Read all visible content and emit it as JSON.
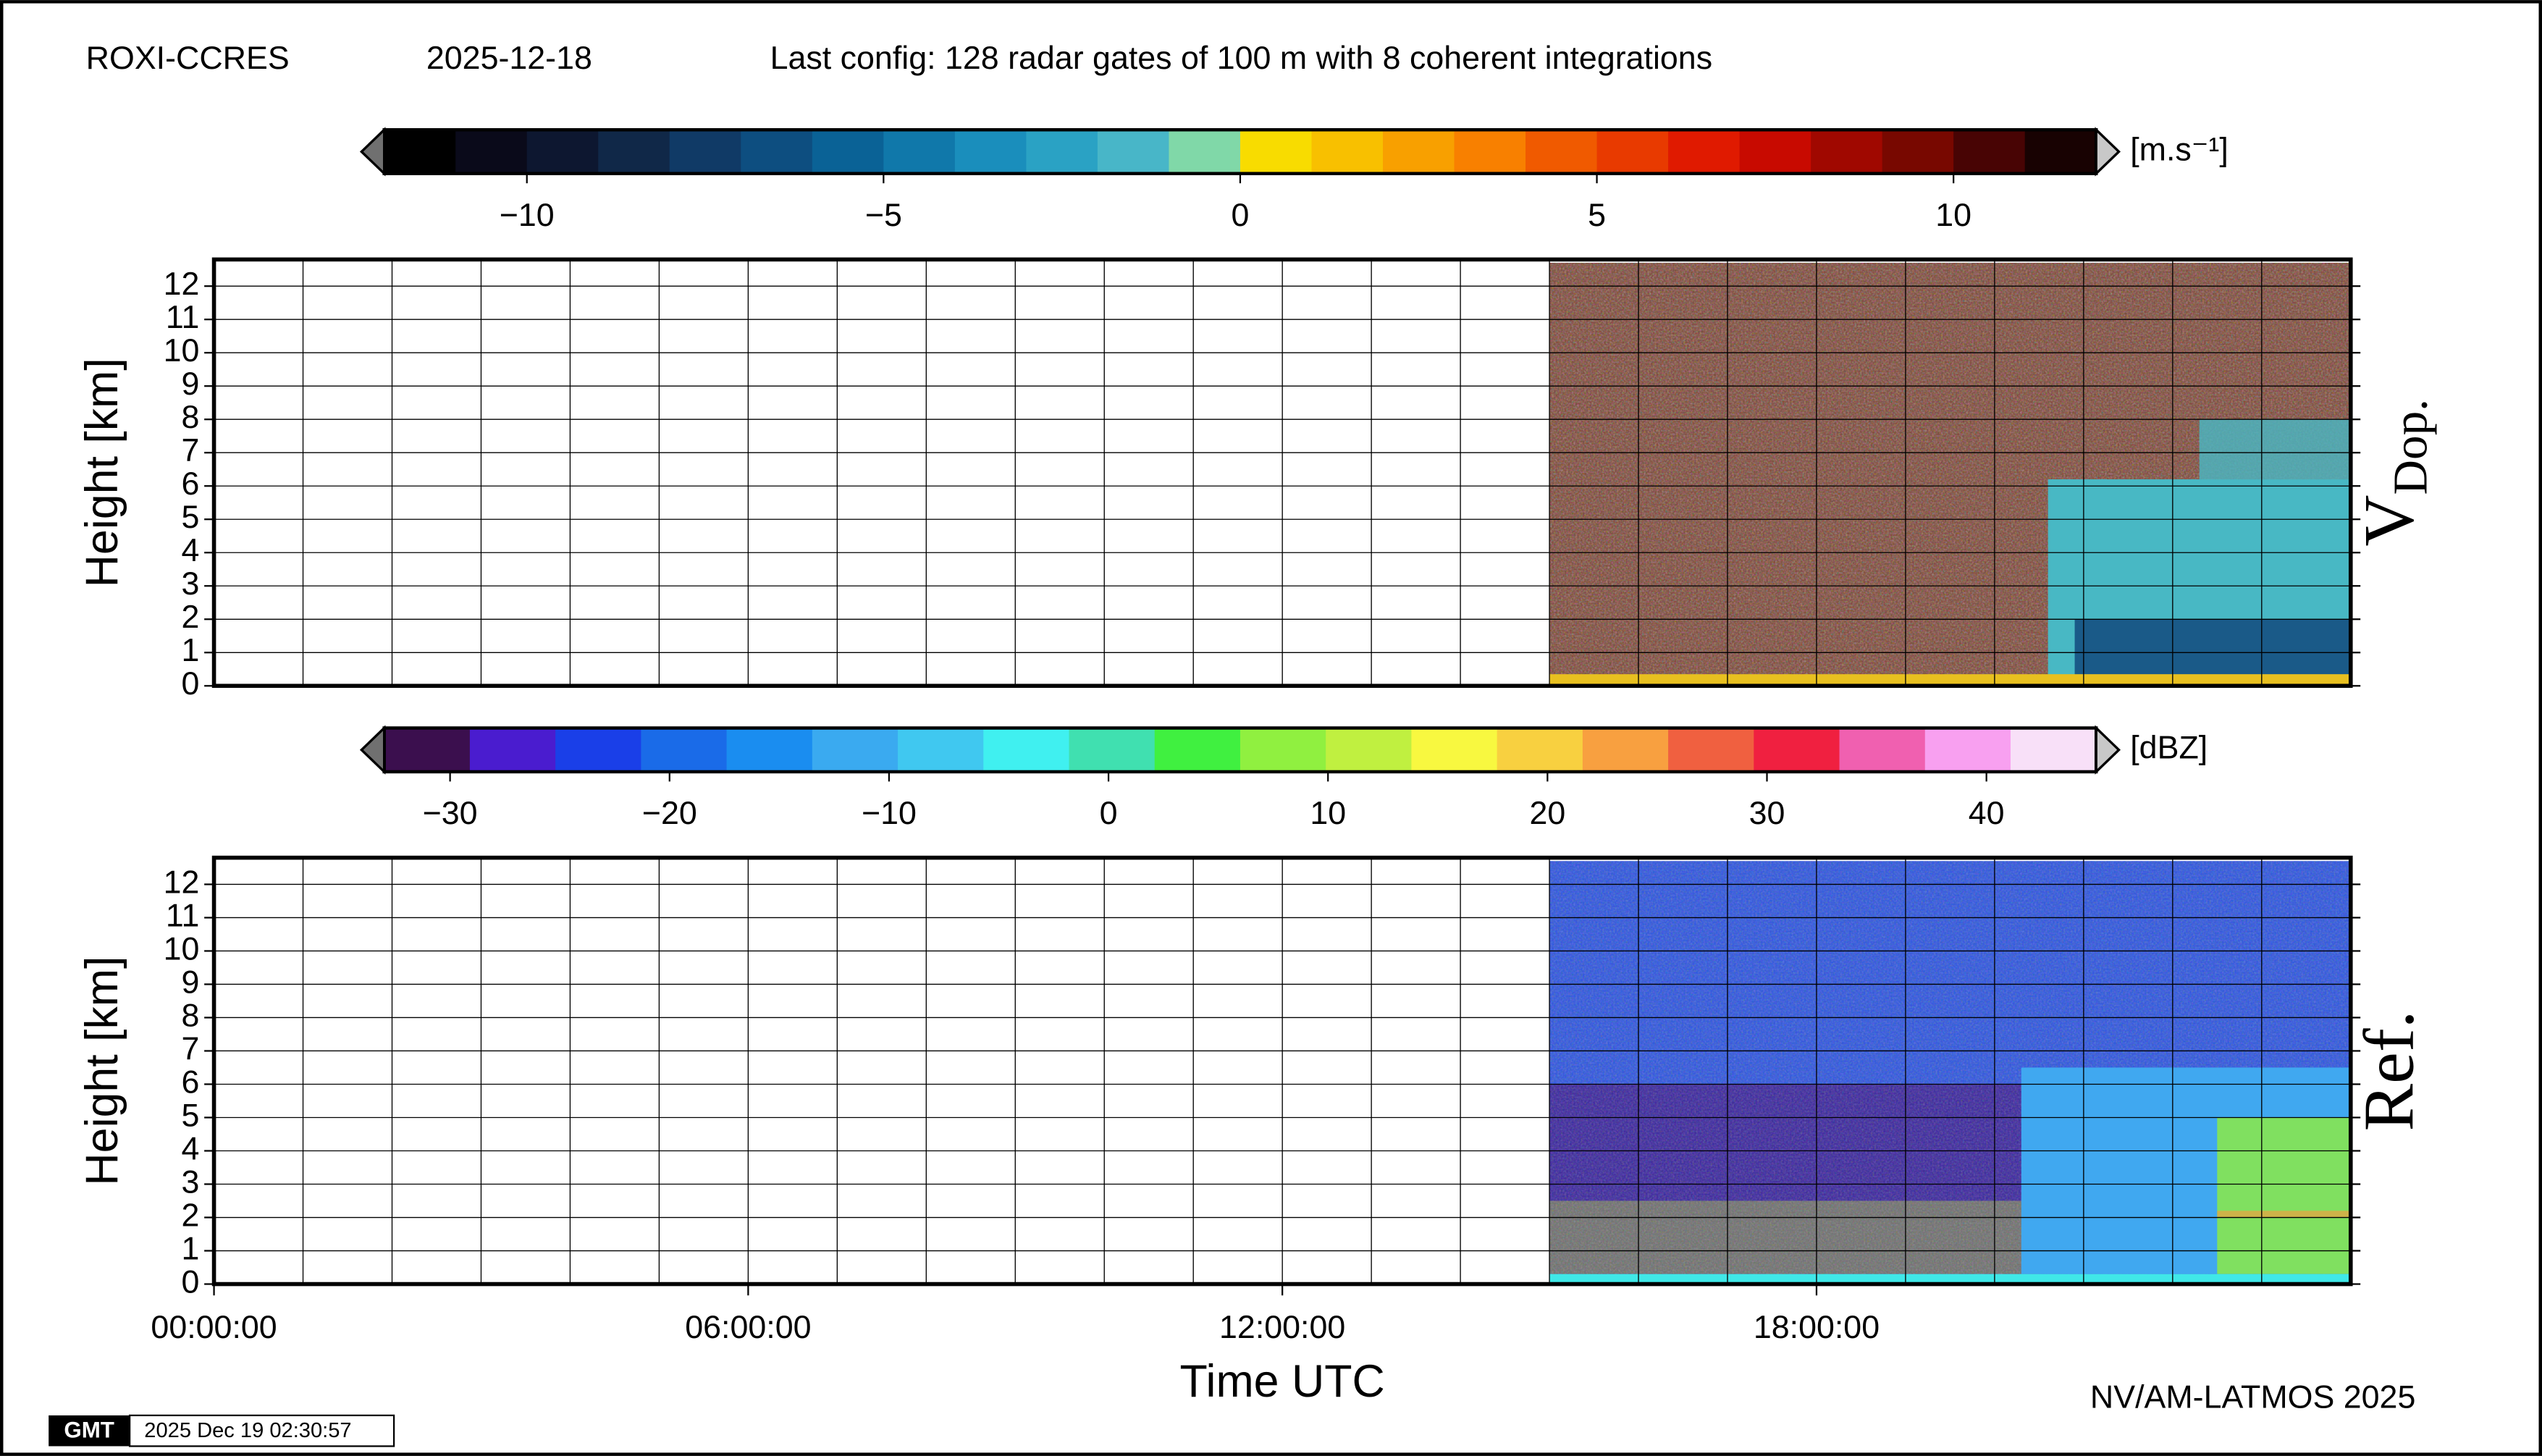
{
  "header": {
    "station": "ROXI-CCRES",
    "date": "2025-12-18",
    "config": "Last config: 128 radar gates of 100 m with 8 coherent integrations"
  },
  "footer": {
    "credit": "NV/AM-LATMOS 2025",
    "logo": "GMT",
    "timestamp": "2025 Dec 19 02:30:57"
  },
  "chart_data": [
    {
      "type": "heatmap",
      "panel_label": "V",
      "panel_label_sub": "Dop.",
      "ylabel": "Height [km]",
      "ylim": [
        0,
        12.8
      ],
      "yticks": [
        0,
        1,
        2,
        3,
        4,
        5,
        6,
        7,
        8,
        9,
        10,
        11,
        12
      ],
      "xlim": [
        0,
        24
      ],
      "xgrid_step": 1,
      "grid": true,
      "colorbar": {
        "label": "[m.s⁻¹]",
        "lim": [
          -12,
          12
        ],
        "ticks": [
          {
            "value": -10,
            "label": "−10"
          },
          {
            "value": -5,
            "label": "−5"
          },
          0,
          5,
          10
        ],
        "colors": [
          "#000000",
          "#0a0a1a",
          "#0d1730",
          "#102848",
          "#103a66",
          "#0d4e80",
          "#0a6296",
          "#1078aa",
          "#1a8ebc",
          "#2aa2c4",
          "#48b6c8",
          "#80d8a8",
          "#f8dc00",
          "#f8c000",
          "#f8a000",
          "#f88000",
          "#f05a00",
          "#e83a00",
          "#e01a00",
          "#c80a00",
          "#a00800",
          "#780800",
          "#480404",
          "#180202"
        ]
      }
    },
    {
      "type": "heatmap",
      "panel_label": "Ref.",
      "ylabel": "Height [km]",
      "xlabel": "Time UTC",
      "ylim": [
        0,
        12.8
      ],
      "yticks": [
        0,
        1,
        2,
        3,
        4,
        5,
        6,
        7,
        8,
        9,
        10,
        11,
        12
      ],
      "xlim": [
        0,
        24
      ],
      "xgrid_step": 1,
      "grid": true,
      "xticks": [
        {
          "value": 0,
          "label": "00:00:00"
        },
        {
          "value": 6,
          "label": "06:00:00"
        },
        {
          "value": 12,
          "label": "12:00:00"
        },
        {
          "value": 18,
          "label": "18:00:00"
        }
      ],
      "colorbar": {
        "label": "[dBZ]",
        "lim": [
          -33,
          45
        ],
        "ticks": [
          {
            "value": -30,
            "label": "−30"
          },
          {
            "value": -20,
            "label": "−20"
          },
          {
            "value": -10,
            "label": "−10"
          },
          0,
          10,
          20,
          30,
          40
        ],
        "colors": [
          "#3b0f4e",
          "#4a1ccf",
          "#1a3fe8",
          "#1a6be8",
          "#1a8df0",
          "#3aaaf0",
          "#40c8f0",
          "#40f0f0",
          "#40e0b0",
          "#40f040",
          "#90f040",
          "#c0f040",
          "#f8f840",
          "#f8d040",
          "#f8a040",
          "#f06040",
          "#f02040",
          "#f060b0",
          "#f8a0f0",
          "#f8e0f8"
        ]
      }
    }
  ]
}
